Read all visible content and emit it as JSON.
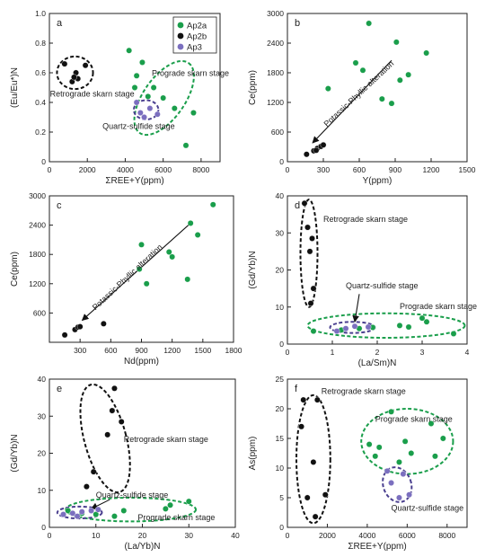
{
  "figure": {
    "legend": [
      {
        "name": "Ap2a",
        "color": "#1a9e4b"
      },
      {
        "name": "Ap2b",
        "color": "#111111"
      },
      {
        "name": "Ap3",
        "color": "#7b6fbf"
      }
    ]
  },
  "chart_data": [
    {
      "id": "a",
      "type": "scatter",
      "panel_label": "a",
      "xlabel": "ΣREE+Y(ppm)",
      "ylabel": "(Eu/Eu*)N",
      "xlim": [
        0,
        9000
      ],
      "ylim": [
        0,
        1.0
      ],
      "xticks": [
        0,
        2000,
        4000,
        6000,
        8000
      ],
      "yticks": [
        0,
        0.2,
        0.4,
        0.6,
        0.8,
        1.0
      ],
      "xtick_labels": [
        "0",
        "2000",
        "4000",
        "6000",
        "8000"
      ],
      "ytick_labels": [
        "0",
        "0.2",
        "0.4",
        "0.6",
        "0.8",
        "1.0"
      ],
      "series": [
        {
          "name": "Ap2a",
          "color": "#1a9e4b",
          "points": [
            [
              4200,
              0.75
            ],
            [
              4600,
              0.58
            ],
            [
              4900,
              0.67
            ],
            [
              5200,
              0.44
            ],
            [
              5500,
              0.5
            ],
            [
              6000,
              0.43
            ],
            [
              6600,
              0.36
            ],
            [
              7200,
              0.11
            ],
            [
              7600,
              0.33
            ],
            [
              4500,
              0.5
            ]
          ]
        },
        {
          "name": "Ap2b",
          "color": "#111111",
          "points": [
            [
              800,
              0.66
            ],
            [
              1200,
              0.54
            ],
            [
              1400,
              0.6
            ],
            [
              1500,
              0.56
            ],
            [
              1900,
              0.65
            ],
            [
              1300,
              0.57
            ]
          ]
        },
        {
          "name": "Ap3",
          "color": "#7b6fbf",
          "points": [
            [
              4600,
              0.4
            ],
            [
              4800,
              0.33
            ],
            [
              5000,
              0.3
            ],
            [
              5300,
              0.36
            ],
            [
              5700,
              0.32
            ]
          ]
        }
      ],
      "annotations": [
        {
          "text": "Prograde skarn stage",
          "x": 5400,
          "y": 0.58
        },
        {
          "text": "Retrograde skarn stage",
          "x": 30,
          "y": 0.44
        },
        {
          "text": "Quartz-sulfide stage",
          "x": 2800,
          "y": 0.22
        }
      ],
      "ellipses": [
        {
          "cx": 1350,
          "cy": 0.6,
          "rx": 950,
          "ry": 0.11,
          "rot": 0,
          "color": "#111111"
        },
        {
          "cx": 6050,
          "cy": 0.43,
          "rx": 2250,
          "ry": 0.14,
          "rot": -55,
          "color": "#1a9e4b"
        },
        {
          "cx": 5100,
          "cy": 0.35,
          "rx": 650,
          "ry": 0.065,
          "rot": 0,
          "color": "#4a3f8f"
        }
      ],
      "arrows": []
    },
    {
      "id": "b",
      "type": "scatter",
      "panel_label": "b",
      "xlabel": "Y(ppm)",
      "ylabel": "Ce(ppm)",
      "xlim": [
        0,
        1500
      ],
      "ylim": [
        0,
        3000
      ],
      "xticks": [
        0,
        300,
        600,
        900,
        1200,
        1500
      ],
      "yticks": [
        0,
        600,
        1200,
        1800,
        2400,
        3000
      ],
      "xtick_labels": [
        "0",
        "300",
        "600",
        "900",
        "1200",
        "1500"
      ],
      "ytick_labels": [
        "0",
        "600",
        "1200",
        "1800",
        "2400",
        "3000"
      ],
      "series": [
        {
          "name": "Ap2a",
          "color": "#1a9e4b",
          "points": [
            [
              340,
              1480
            ],
            [
              570,
              2000
            ],
            [
              630,
              1850
            ],
            [
              680,
              2800
            ],
            [
              790,
              1270
            ],
            [
              870,
              1180
            ],
            [
              910,
              2420
            ],
            [
              1010,
              1760
            ],
            [
              1160,
              2200
            ],
            [
              940,
              1650
            ]
          ]
        },
        {
          "name": "Ap2b",
          "color": "#111111",
          "points": [
            [
              160,
              150
            ],
            [
              220,
              220
            ],
            [
              250,
              270
            ],
            [
              280,
              310
            ],
            [
              300,
              340
            ],
            [
              240,
              230
            ]
          ]
        },
        {
          "name": "Ap3",
          "color": "#7b6fbf",
          "points": []
        }
      ],
      "annotations": [
        {
          "text": "Potassic-Phyllic alteration",
          "x": 330,
          "y": 700,
          "rotate": -43
        }
      ],
      "ellipses": [],
      "arrows": [
        {
          "from": [
            870,
            2050
          ],
          "to": [
            210,
            380
          ]
        }
      ]
    },
    {
      "id": "c",
      "type": "scatter",
      "panel_label": "c",
      "xlabel": "Nd(ppm)",
      "ylabel": "Ce(ppm)",
      "xlim": [
        0,
        1800
      ],
      "ylim": [
        0,
        3000
      ],
      "xticks": [
        300,
        600,
        900,
        1200,
        1500,
        1800
      ],
      "yticks": [
        600,
        1200,
        1800,
        2400,
        3000
      ],
      "xtick_labels": [
        "300",
        "600",
        "900",
        "1200",
        "1500",
        "1800"
      ],
      "ytick_labels": [
        "600",
        "1200",
        "1800",
        "2400",
        "3000"
      ],
      "series": [
        {
          "name": "Ap2a",
          "color": "#1a9e4b",
          "points": [
            [
              880,
              1500
            ],
            [
              900,
              2000
            ],
            [
              950,
              1200
            ],
            [
              1170,
              1850
            ],
            [
              1200,
              1750
            ],
            [
              1350,
              1290
            ],
            [
              1380,
              2440
            ],
            [
              1450,
              2200
            ],
            [
              1600,
              2820
            ]
          ]
        },
        {
          "name": "Ap2b",
          "color": "#111111",
          "points": [
            [
              150,
              150
            ],
            [
              250,
              260
            ],
            [
              280,
              310
            ],
            [
              300,
              320
            ],
            [
              530,
              380
            ]
          ]
        },
        {
          "name": "Ap3",
          "color": "#7b6fbf",
          "points": []
        }
      ],
      "annotations": [
        {
          "text": "Potassic-Phyllic alteration",
          "x": 450,
          "y": 650,
          "rotate": -43
        }
      ],
      "ellipses": [],
      "arrows": [
        {
          "from": [
            1380,
            2440
          ],
          "to": [
            320,
            450
          ]
        }
      ]
    },
    {
      "id": "d",
      "type": "scatter",
      "panel_label": "d",
      "xlabel": "(La/Sm)N",
      "ylabel": "(Gd/Yb)N",
      "xlim": [
        0,
        4
      ],
      "ylim": [
        0,
        40
      ],
      "xticks": [
        0,
        1,
        2,
        3,
        4
      ],
      "yticks": [
        0,
        10,
        20,
        30,
        40
      ],
      "xtick_labels": [
        "0",
        "1",
        "2",
        "3",
        "4"
      ],
      "ytick_labels": [
        "0",
        "10",
        "20",
        "30",
        "40"
      ],
      "series": [
        {
          "name": "Ap2a",
          "color": "#1a9e4b",
          "points": [
            [
              0.58,
              3.5
            ],
            [
              1.9,
              4.5
            ],
            [
              2.5,
              5.0
            ],
            [
              2.7,
              4.6
            ],
            [
              3.0,
              7.0
            ],
            [
              3.1,
              6.0
            ],
            [
              3.7,
              2.8
            ],
            [
              1.2,
              3.8
            ],
            [
              1.6,
              4.2
            ]
          ]
        },
        {
          "name": "Ap2b",
          "color": "#111111",
          "points": [
            [
              0.38,
              38
            ],
            [
              0.45,
              31.5
            ],
            [
              0.5,
              25
            ],
            [
              0.55,
              28.5
            ],
            [
              0.58,
              15
            ],
            [
              0.52,
              11
            ]
          ]
        },
        {
          "name": "Ap3",
          "color": "#7b6fbf",
          "points": [
            [
              1.1,
              3.5
            ],
            [
              1.3,
              4.2
            ],
            [
              1.5,
              4.8
            ],
            [
              1.8,
              4.6
            ]
          ]
        }
      ],
      "annotations": [
        {
          "text": "Retrograde skarn stage",
          "x": 0.8,
          "y": 33
        },
        {
          "text": "Quartz-sulfide stage",
          "x": 1.3,
          "y": 15
        },
        {
          "text": "Prograde skarn stage",
          "x": 2.5,
          "y": 9.5
        }
      ],
      "ellipses": [
        {
          "cx": 0.48,
          "cy": 24.5,
          "rx": 0.19,
          "ry": 14.5,
          "rot": 0,
          "color": "#111111"
        },
        {
          "cx": 2.2,
          "cy": 5.0,
          "rx": 1.75,
          "ry": 3.3,
          "rot": 0,
          "color": "#1a9e4b"
        },
        {
          "cx": 1.45,
          "cy": 4.5,
          "rx": 0.5,
          "ry": 1.5,
          "rot": 0,
          "color": "#4a3f8f"
        }
      ],
      "arrows": [
        {
          "from": [
            1.6,
            13.5
          ],
          "to": [
            1.5,
            6.0
          ]
        }
      ]
    },
    {
      "id": "e",
      "type": "scatter",
      "panel_label": "e",
      "xlabel": "(La/Yb)N",
      "ylabel": "(Gd/Yb)N",
      "xlim": [
        0,
        40
      ],
      "ylim": [
        0,
        40
      ],
      "xticks": [
        0,
        10,
        20,
        30,
        40
      ],
      "yticks": [
        0,
        10,
        20,
        30,
        40
      ],
      "xtick_labels": [
        "0",
        "10",
        "20",
        "30",
        "40"
      ],
      "ytick_labels": [
        "0",
        "10",
        "20",
        "30",
        "40"
      ],
      "series": [
        {
          "name": "Ap2a",
          "color": "#1a9e4b",
          "points": [
            [
              4,
              4.5
            ],
            [
              10,
              3.5
            ],
            [
              14,
              3.0
            ],
            [
              16,
              4.5
            ],
            [
              25,
              5.0
            ],
            [
              26,
              6.0
            ],
            [
              30,
              7.0
            ],
            [
              7,
              3.8
            ]
          ]
        },
        {
          "name": "Ap2b",
          "color": "#111111",
          "points": [
            [
              8,
              11
            ],
            [
              9.5,
              15
            ],
            [
              12.5,
              25
            ],
            [
              13.5,
              31.5
            ],
            [
              14,
              37.5
            ],
            [
              15.5,
              28.5
            ]
          ]
        },
        {
          "name": "Ap3",
          "color": "#7b6fbf",
          "points": [
            [
              3,
              3.5
            ],
            [
              5,
              3.8
            ],
            [
              7,
              4.2
            ],
            [
              9,
              4.5
            ],
            [
              10.5,
              4.8
            ],
            [
              6,
              3.0
            ]
          ]
        }
      ],
      "annotations": [
        {
          "text": "Retrograde skarn stage",
          "x": 16,
          "y": 23
        },
        {
          "text": "Quartz-sulfide stage",
          "x": 10,
          "y": 8
        },
        {
          "text": "Prograde skarn stage",
          "x": 19,
          "y": 2
        }
      ],
      "ellipses": [
        {
          "cx": 12,
          "cy": 24,
          "rx": 4.5,
          "ry": 15,
          "rot": -15,
          "color": "#111111"
        },
        {
          "cx": 17.5,
          "cy": 4.8,
          "rx": 14,
          "ry": 3.2,
          "rot": 0,
          "color": "#1a9e4b"
        },
        {
          "cx": 6.5,
          "cy": 4.0,
          "rx": 4.8,
          "ry": 1.6,
          "rot": 0,
          "color": "#4a3f8f"
        }
      ],
      "arrows": [
        {
          "from": [
            13,
            7.5
          ],
          "to": [
            9,
            5.0
          ]
        }
      ]
    },
    {
      "id": "f",
      "type": "scatter",
      "panel_label": "f",
      "xlabel": "ΣREE+Y(ppm)",
      "ylabel": "As(ppm)",
      "xlim": [
        0,
        9000
      ],
      "ylim": [
        0,
        25
      ],
      "xticks": [
        0,
        2000,
        4000,
        6000,
        8000
      ],
      "yticks": [
        0,
        5,
        10,
        15,
        20,
        25
      ],
      "xtick_labels": [
        "0",
        "2000",
        "4000",
        "6000",
        "8000"
      ],
      "ytick_labels": [
        "0",
        "5",
        "10",
        "15",
        "20",
        "25"
      ],
      "series": [
        {
          "name": "Ap2a",
          "color": "#1a9e4b",
          "points": [
            [
              4100,
              14
            ],
            [
              4400,
              12
            ],
            [
              4600,
              13.5
            ],
            [
              5200,
              19.5
            ],
            [
              5600,
              11
            ],
            [
              5900,
              14.5
            ],
            [
              6200,
              12.5
            ],
            [
              7200,
              17.5
            ],
            [
              7400,
              12
            ],
            [
              7800,
              15
            ]
          ]
        },
        {
          "name": "Ap2b",
          "color": "#111111",
          "points": [
            [
              700,
              17
            ],
            [
              800,
              21.5
            ],
            [
              1300,
              11
            ],
            [
              1400,
              1.8
            ],
            [
              1500,
              21.5
            ],
            [
              1900,
              5.5
            ],
            [
              1000,
              5
            ]
          ]
        },
        {
          "name": "Ap3",
          "color": "#7b6fbf",
          "points": [
            [
              5000,
              9.5
            ],
            [
              5200,
              7.5
            ],
            [
              5600,
              5.0
            ],
            [
              5800,
              9.0
            ],
            [
              6100,
              5.5
            ]
          ]
        }
      ],
      "annotations": [
        {
          "text": "Retrograde skarn stage",
          "x": 1700,
          "y": 22.5
        },
        {
          "text": "Prograde skarn stage",
          "x": 4400,
          "y": 17.8
        },
        {
          "text": "Quartz-sulfide stage",
          "x": 5200,
          "y": 2.8
        }
      ],
      "ellipses": [
        {
          "cx": 1300,
          "cy": 11.5,
          "rx": 850,
          "ry": 10.8,
          "rot": 0,
          "color": "#111111"
        },
        {
          "cx": 6000,
          "cy": 14.5,
          "rx": 2300,
          "ry": 5.5,
          "rot": 0,
          "color": "#1a9e4b"
        },
        {
          "cx": 5500,
          "cy": 7.2,
          "rx": 700,
          "ry": 3.0,
          "rot": -20,
          "color": "#4a3f8f"
        }
      ],
      "arrows": []
    }
  ]
}
